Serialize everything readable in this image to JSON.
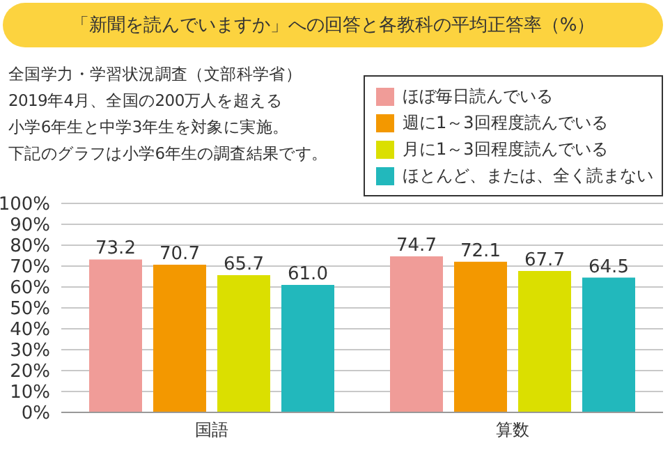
{
  "chart_data": {
    "type": "bar",
    "title": "「新聞を読んでいますか」への回答と各教科の平均正答率（%）",
    "annotations": [
      "全国学力・学習状況調査（文部科学省）",
      "2019年4月、全国の200万人を超える",
      "小学6年生と中学3年生を対象に実施。",
      "下記のグラフは小学6年生の調査結果です。"
    ],
    "categories": [
      "国語",
      "算数"
    ],
    "series": [
      {
        "name": "ほぼ毎日読んでいる",
        "color": "#f09c98",
        "values": [
          73.2,
          74.7
        ],
        "value_labels": [
          "73.2",
          "74.7"
        ]
      },
      {
        "name": "週に1～3回程度読んでいる",
        "color": "#f39800",
        "values": [
          70.7,
          72.1
        ],
        "value_labels": [
          "70.7",
          "72.1"
        ]
      },
      {
        "name": "月に1～3回程度読んでいる",
        "color": "#dbdf00",
        "values": [
          65.7,
          67.7
        ],
        "value_labels": [
          "65.7",
          "67.7"
        ]
      },
      {
        "name": "ほとんど、または、全く読まない",
        "color": "#22b8bc",
        "values": [
          61.0,
          64.5
        ],
        "value_labels": [
          "61.0",
          "64.5"
        ]
      }
    ],
    "ylim": [
      0,
      100
    ],
    "yticks": [
      {
        "value": 0,
        "label": "0%"
      },
      {
        "value": 10,
        "label": "10%"
      },
      {
        "value": 20,
        "label": "20%"
      },
      {
        "value": 30,
        "label": "30%"
      },
      {
        "value": 40,
        "label": "40%"
      },
      {
        "value": 50,
        "label": "50%"
      },
      {
        "value": 60,
        "label": "60%"
      },
      {
        "value": 70,
        "label": "70%"
      },
      {
        "value": 80,
        "label": "80%"
      },
      {
        "value": 90,
        "label": "90%"
      },
      {
        "value": 100,
        "label": "100%"
      }
    ],
    "grid": "y",
    "legend": "top right"
  }
}
